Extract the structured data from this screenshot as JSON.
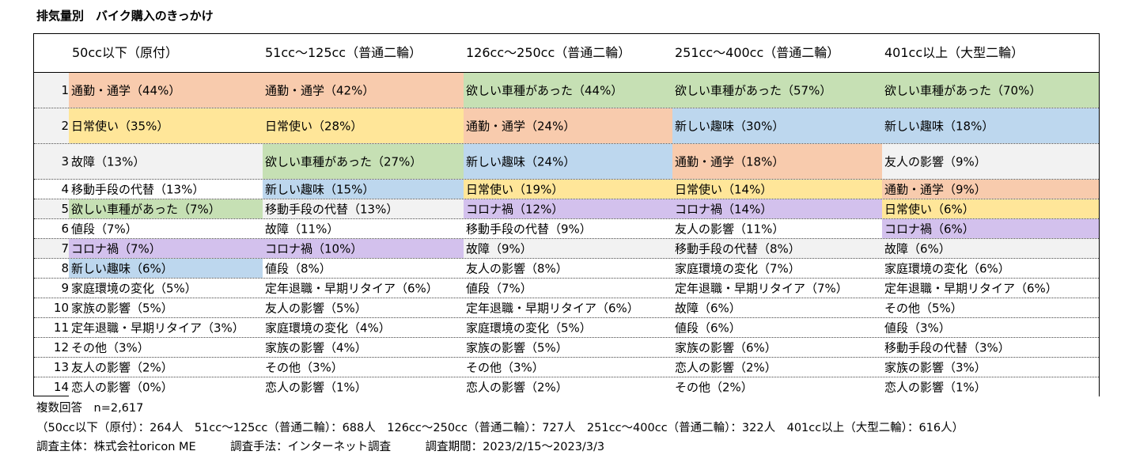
{
  "title": "排気量別　バイク購入のきっかけ",
  "colors": {
    "commute": "#f8cbad",
    "daily": "#ffe699",
    "wanted": "#c6e0b4",
    "hobby": "#bdd7ee",
    "corona": "#d3c1ed",
    "shaded": "#f2f2f2",
    "plain": "#ffffff"
  },
  "chart_data": {
    "type": "table",
    "columns": [
      "50cc以下（原付）",
      "51cc～125cc（普通二輪）",
      "126cc～250cc（普通二輪）",
      "251cc～400cc（普通二輪）",
      "401cc以上（大型二輪）"
    ],
    "rows": [
      {
        "rank": "1",
        "cells": [
          {
            "text": "通勤・通学（44%）",
            "cat": "commute"
          },
          {
            "text": "通勤・通学（42%）",
            "cat": "commute"
          },
          {
            "text": "欲しい車種があった（44%）",
            "cat": "wanted"
          },
          {
            "text": "欲しい車種があった（57%）",
            "cat": "wanted"
          },
          {
            "text": "欲しい車種があった（70%）",
            "cat": "wanted"
          }
        ]
      },
      {
        "rank": "2",
        "cells": [
          {
            "text": "日常使い（35%）",
            "cat": "daily"
          },
          {
            "text": "日常使い（28%）",
            "cat": "daily"
          },
          {
            "text": "通勤・通学（24%）",
            "cat": "commute"
          },
          {
            "text": "新しい趣味（30%）",
            "cat": "hobby"
          },
          {
            "text": "新しい趣味（18%）",
            "cat": "hobby"
          }
        ]
      },
      {
        "rank": "3",
        "cells": [
          {
            "text": "故障（13%）",
            "cat": "shaded"
          },
          {
            "text": "欲しい車種があった（27%）",
            "cat": "wanted"
          },
          {
            "text": "新しい趣味（24%）",
            "cat": "hobby"
          },
          {
            "text": "通勤・通学（18%）",
            "cat": "commute"
          },
          {
            "text": "友人の影響（9%）",
            "cat": "shaded"
          }
        ]
      },
      {
        "rank": "4",
        "cells": [
          {
            "text": "移動手段の代替（13%）",
            "cat": "plain"
          },
          {
            "text": "新しい趣味（15%）",
            "cat": "hobby"
          },
          {
            "text": "日常使い（19%）",
            "cat": "daily"
          },
          {
            "text": "日常使い（14%）",
            "cat": "daily"
          },
          {
            "text": "通勤・通学（9%）",
            "cat": "commute"
          }
        ]
      },
      {
        "rank": "5",
        "cells": [
          {
            "text": "欲しい車種があった（7%）",
            "cat": "wanted"
          },
          {
            "text": "移動手段の代替（13%）",
            "cat": "shaded"
          },
          {
            "text": "コロナ禍（12%）",
            "cat": "corona"
          },
          {
            "text": "コロナ禍（14%）",
            "cat": "corona"
          },
          {
            "text": "日常使い（6%）",
            "cat": "daily"
          }
        ]
      },
      {
        "rank": "6",
        "cells": [
          {
            "text": "値段（7%）",
            "cat": "plain"
          },
          {
            "text": "故障（11%）",
            "cat": "plain"
          },
          {
            "text": "移動手段の代替（9%）",
            "cat": "plain"
          },
          {
            "text": "友人の影響（11%）",
            "cat": "plain"
          },
          {
            "text": "コロナ禍（6%）",
            "cat": "corona"
          }
        ]
      },
      {
        "rank": "7",
        "cells": [
          {
            "text": "コロナ禍（7%）",
            "cat": "corona"
          },
          {
            "text": "コロナ禍（10%）",
            "cat": "corona"
          },
          {
            "text": "故障（9%）",
            "cat": "shaded"
          },
          {
            "text": "移動手段の代替（8%）",
            "cat": "shaded"
          },
          {
            "text": "故障（6%）",
            "cat": "shaded"
          }
        ]
      },
      {
        "rank": "8",
        "cells": [
          {
            "text": "新しい趣味（6%）",
            "cat": "hobby"
          },
          {
            "text": "値段（8%）",
            "cat": "plain"
          },
          {
            "text": "友人の影響（8%）",
            "cat": "plain"
          },
          {
            "text": "家庭環境の変化（7%）",
            "cat": "plain"
          },
          {
            "text": "家庭環境の変化（6%）",
            "cat": "plain"
          }
        ]
      },
      {
        "rank": "9",
        "cells": [
          {
            "text": "家庭環境の変化（5%）",
            "cat": "plain"
          },
          {
            "text": "定年退職・早期リタイア（6%）",
            "cat": "plain"
          },
          {
            "text": "値段（7%）",
            "cat": "plain"
          },
          {
            "text": "定年退職・早期リタイア（7%）",
            "cat": "plain"
          },
          {
            "text": "定年退職・早期リタイア（6%）",
            "cat": "plain"
          }
        ]
      },
      {
        "rank": "10",
        "cells": [
          {
            "text": "家族の影響（5%）",
            "cat": "plain"
          },
          {
            "text": "友人の影響（5%）",
            "cat": "plain"
          },
          {
            "text": "定年退職・早期リタイア（6%）",
            "cat": "plain"
          },
          {
            "text": "故障（6%）",
            "cat": "plain"
          },
          {
            "text": "その他（5%）",
            "cat": "plain"
          }
        ]
      },
      {
        "rank": "11",
        "cells": [
          {
            "text": "定年退職・早期リタイア（3%）",
            "cat": "plain"
          },
          {
            "text": "家庭環境の変化（4%）",
            "cat": "plain"
          },
          {
            "text": "家庭環境の変化（5%）",
            "cat": "plain"
          },
          {
            "text": "値段（6%）",
            "cat": "plain"
          },
          {
            "text": "値段（3%）",
            "cat": "plain"
          }
        ]
      },
      {
        "rank": "12",
        "cells": [
          {
            "text": "その他（3%）",
            "cat": "plain"
          },
          {
            "text": "家族の影響（4%）",
            "cat": "plain"
          },
          {
            "text": "家族の影響（5%）",
            "cat": "plain"
          },
          {
            "text": "家族の影響（6%）",
            "cat": "plain"
          },
          {
            "text": "移動手段の代替（3%）",
            "cat": "plain"
          }
        ]
      },
      {
        "rank": "13",
        "cells": [
          {
            "text": "友人の影響（2%）",
            "cat": "plain"
          },
          {
            "text": "その他（3%）",
            "cat": "plain"
          },
          {
            "text": "その他（3%）",
            "cat": "plain"
          },
          {
            "text": "恋人の影響（2%）",
            "cat": "plain"
          },
          {
            "text": "家族の影響（3%）",
            "cat": "plain"
          }
        ]
      },
      {
        "rank": "14",
        "cells": [
          {
            "text": "恋人の影響（0%）",
            "cat": "plain"
          },
          {
            "text": "恋人の影響（1%）",
            "cat": "plain"
          },
          {
            "text": "恋人の影響（2%）",
            "cat": "plain"
          },
          {
            "text": "その他（2%）",
            "cat": "plain"
          },
          {
            "text": "恋人の影響（1%）",
            "cat": "plain"
          }
        ]
      }
    ]
  },
  "notes": {
    "line1": "複数回答　n=2,617",
    "line2": "（50cc以下（原付）：264人　51cc～125cc（普通二輪）：688人　126cc～250cc（普通二輪）：727人　251cc～400cc（普通二輪）：322人　401cc以上（大型二輪）：616人）",
    "line3": "調査主体：株式会社oricon ME　　　調査手法：インターネット調査　　　調査期間：2023/2/15～2023/3/3"
  }
}
